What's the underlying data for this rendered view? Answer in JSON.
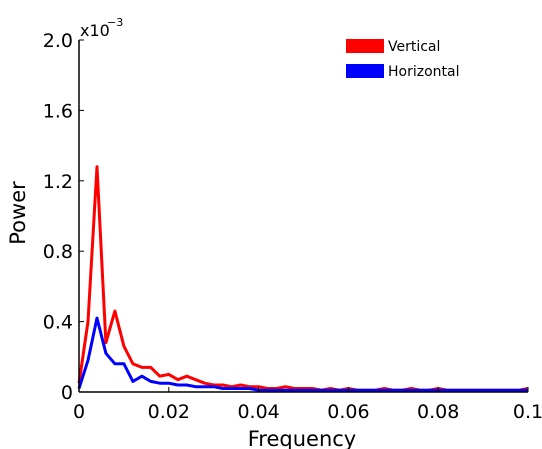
{
  "chart_data": {
    "type": "line",
    "xlabel": "Frequency",
    "ylabel": "Power",
    "xlim": [
      0,
      0.1
    ],
    "ylim": [
      0,
      0.002
    ],
    "x_ticks": [
      0,
      0.02,
      0.04,
      0.06,
      0.08,
      0.1
    ],
    "x_tick_labels": [
      "0",
      "0.02",
      "0.04",
      "0.06",
      "0.08",
      "0.1"
    ],
    "y_ticks": [
      0,
      0.0004,
      0.0008,
      0.0012,
      0.0016,
      0.002
    ],
    "y_tick_labels": [
      "0",
      "0.4",
      "0.8",
      "1.2",
      "1.6",
      "2.0"
    ],
    "y_exponent_base": "x10",
    "y_exponent_power": "−3",
    "grid": false,
    "legend_position": "top-right",
    "series": [
      {
        "name": "Vertical",
        "color": "#ff0000",
        "x": [
          0,
          0.002,
          0.004,
          0.006,
          0.008,
          0.01,
          0.012,
          0.014,
          0.016,
          0.018,
          0.02,
          0.022,
          0.024,
          0.026,
          0.028,
          0.03,
          0.032,
          0.034,
          0.036,
          0.038,
          0.04,
          0.042,
          0.044,
          0.046,
          0.048,
          0.05,
          0.052,
          0.054,
          0.056,
          0.058,
          0.06,
          0.062,
          0.064,
          0.066,
          0.068,
          0.07,
          0.072,
          0.074,
          0.076,
          0.078,
          0.08,
          0.082,
          0.084,
          0.086,
          0.088,
          0.09,
          0.092,
          0.094,
          0.096,
          0.098,
          0.1
        ],
        "y": [
          5e-05,
          0.0004,
          0.00128,
          0.00028,
          0.00046,
          0.00026,
          0.00016,
          0.00014,
          0.00014,
          9e-05,
          0.0001,
          7e-05,
          9e-05,
          7e-05,
          5e-05,
          4e-05,
          4e-05,
          3e-05,
          4e-05,
          3e-05,
          3e-05,
          2e-05,
          2e-05,
          3e-05,
          2e-05,
          2e-05,
          2e-05,
          1e-05,
          2e-05,
          1e-05,
          2e-05,
          1e-05,
          1e-05,
          1e-05,
          2e-05,
          1e-05,
          1e-05,
          2e-05,
          1e-05,
          1e-05,
          2e-05,
          1e-05,
          1e-05,
          1e-05,
          1e-05,
          1e-05,
          1e-05,
          1e-05,
          1e-05,
          1e-05,
          2e-05
        ]
      },
      {
        "name": "Horizontal",
        "color": "#0000ff",
        "x": [
          0,
          0.002,
          0.004,
          0.006,
          0.008,
          0.01,
          0.012,
          0.014,
          0.016,
          0.018,
          0.02,
          0.022,
          0.024,
          0.026,
          0.028,
          0.03,
          0.032,
          0.034,
          0.036,
          0.038,
          0.04,
          0.042,
          0.044,
          0.046,
          0.048,
          0.05,
          0.052,
          0.054,
          0.056,
          0.058,
          0.06,
          0.062,
          0.064,
          0.066,
          0.068,
          0.07,
          0.072,
          0.074,
          0.076,
          0.078,
          0.08,
          0.082,
          0.084,
          0.086,
          0.088,
          0.09,
          0.092,
          0.094,
          0.096,
          0.098,
          0.1
        ],
        "y": [
          2e-05,
          0.00018,
          0.00042,
          0.00022,
          0.00016,
          0.00016,
          6e-05,
          9e-05,
          6e-05,
          5e-05,
          5e-05,
          4e-05,
          4e-05,
          3e-05,
          3e-05,
          3e-05,
          2e-05,
          2e-05,
          2e-05,
          2e-05,
          1e-05,
          1e-05,
          1e-05,
          1e-05,
          1e-05,
          1e-05,
          1e-05,
          1e-05,
          1e-05,
          1e-05,
          1e-05,
          1e-05,
          1e-05,
          1e-05,
          1e-05,
          1e-05,
          1e-05,
          1e-05,
          1e-05,
          1e-05,
          1e-05,
          1e-05,
          1e-05,
          1e-05,
          1e-05,
          1e-05,
          1e-05,
          1e-05,
          1e-05,
          1e-05,
          1e-05
        ]
      }
    ]
  }
}
